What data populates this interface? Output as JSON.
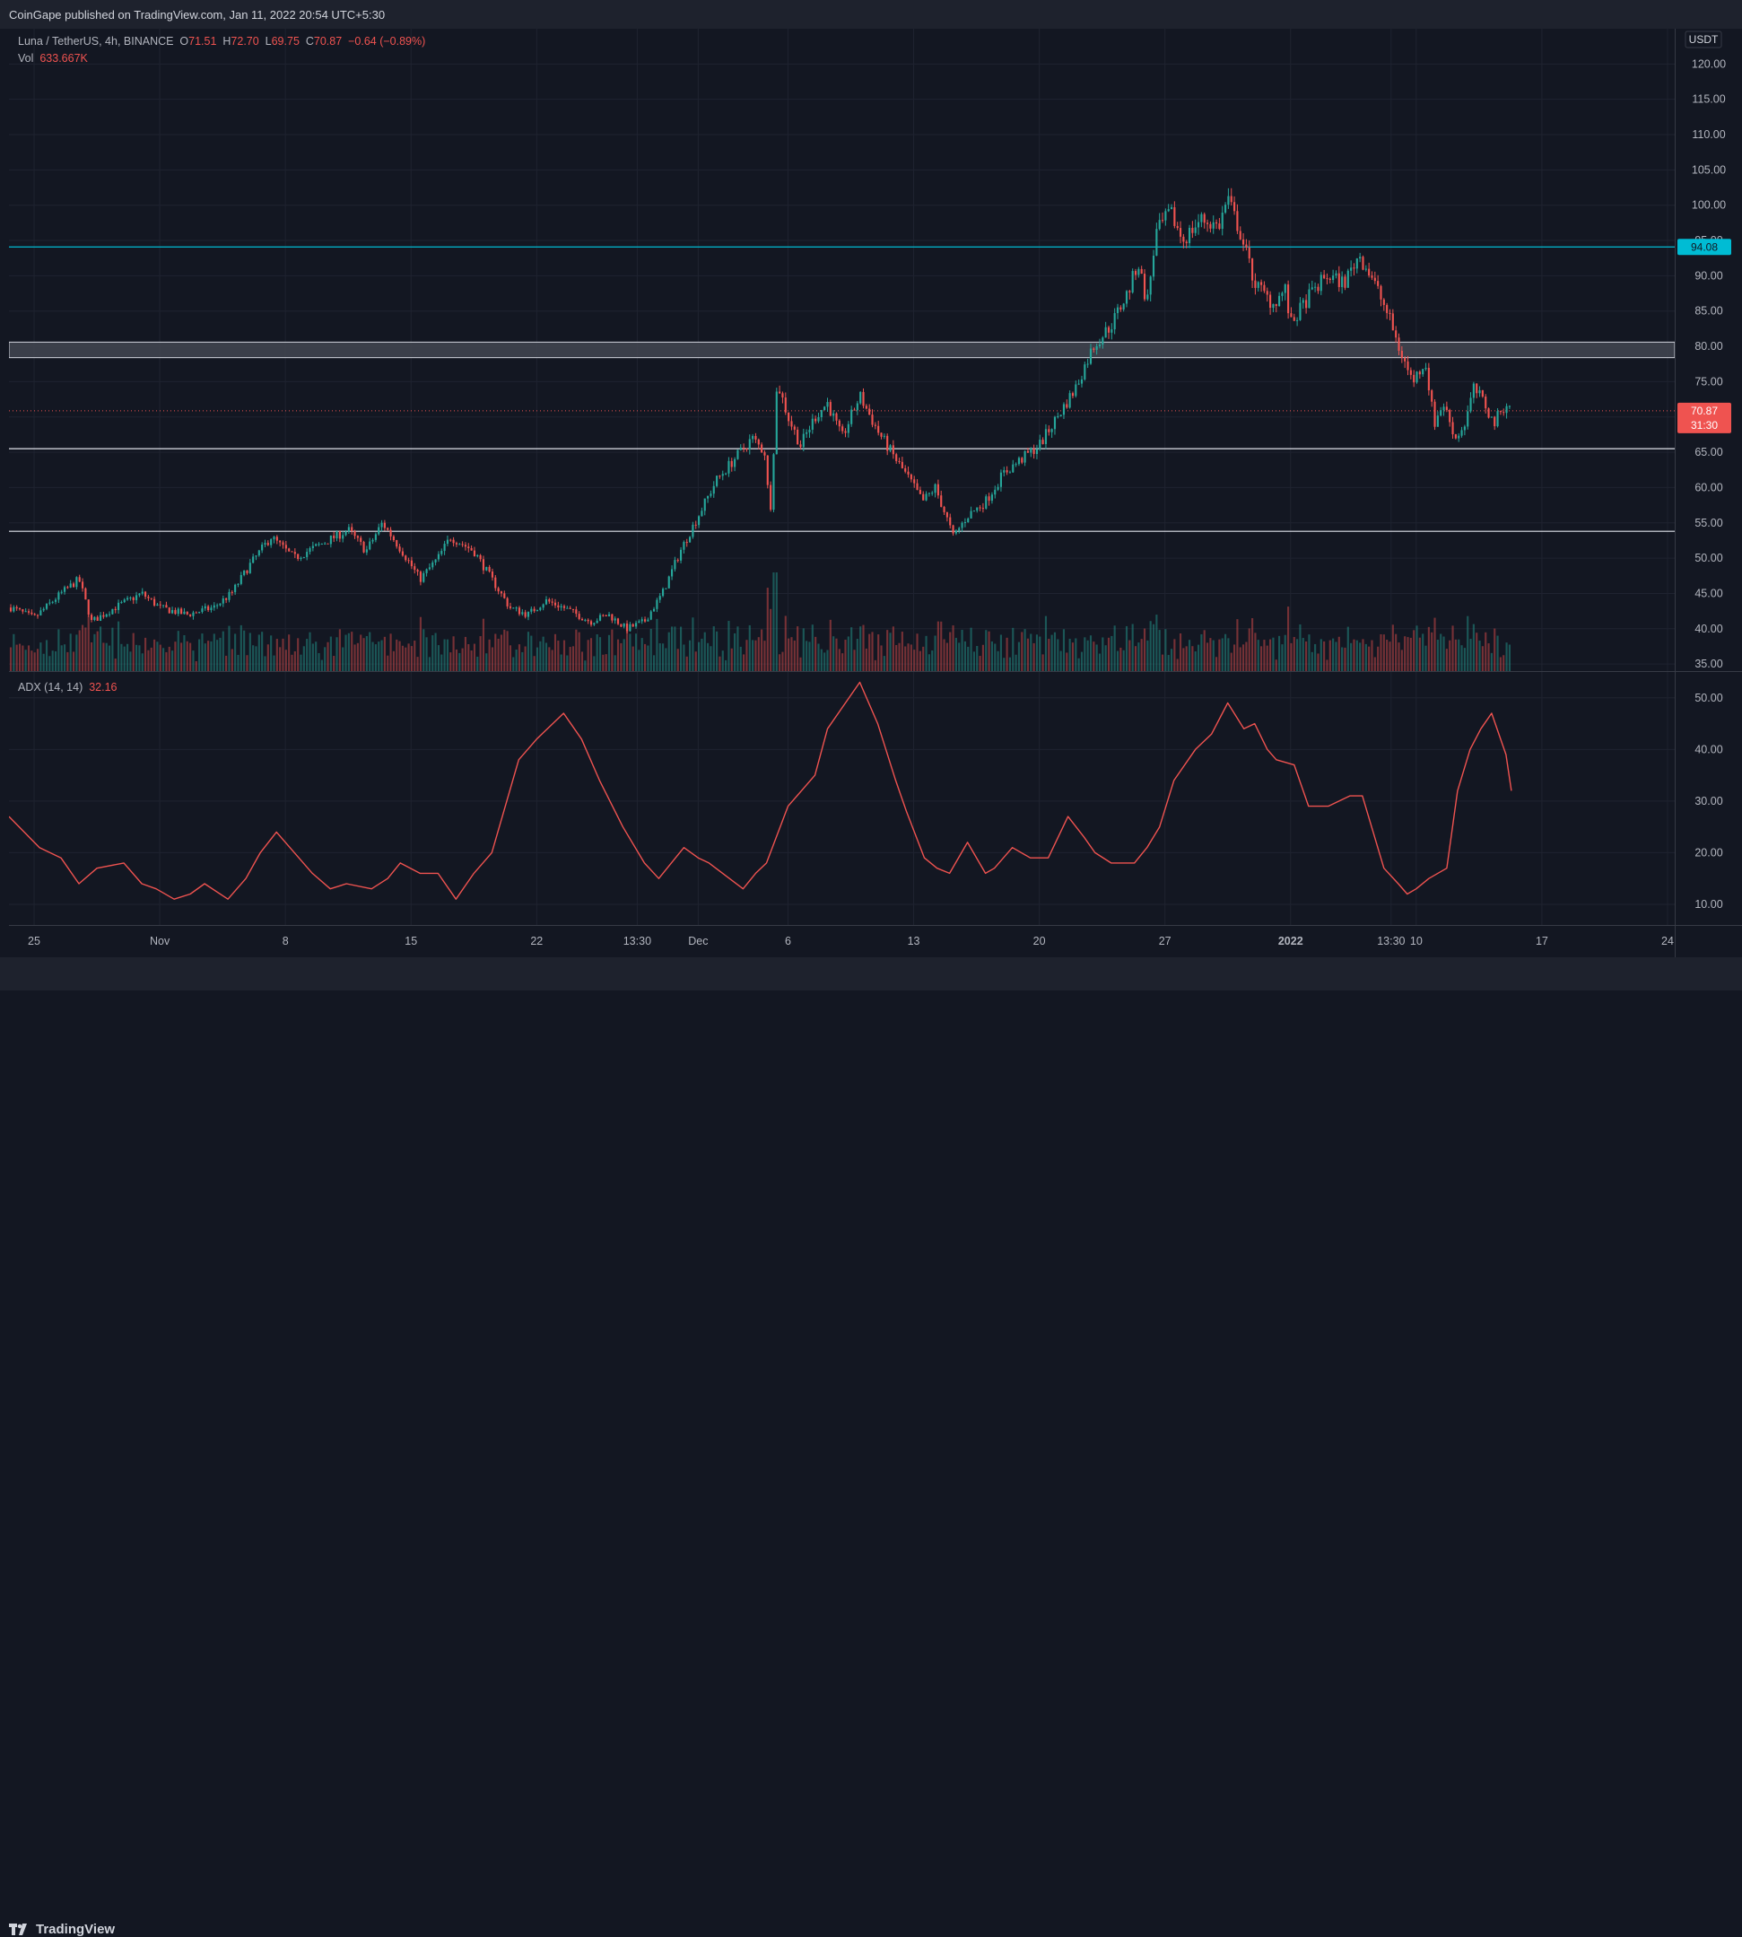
{
  "header": {
    "published": "CoinGape published on TradingView.com, Jan 11, 2022 20:54 UTC+5:30"
  },
  "legend": {
    "symbol": "Luna / TetherUS, 4h, BINANCE",
    "o_label": "O",
    "open": "71.51",
    "h_label": "H",
    "high": "72.70",
    "l_label": "L",
    "low": "69.75",
    "c_label": "C",
    "close": "70.87",
    "change": "−0.64 (−0.89%)",
    "vol_label": "Vol",
    "vol": "633.667K"
  },
  "adx_legend": {
    "label": "ADX (14, 14)",
    "value": "32.16"
  },
  "currency": "USDT",
  "footer": {
    "brand": "TradingView"
  },
  "colors": {
    "up": "#26a69a",
    "down": "#ef5350",
    "adx": "#ef5350",
    "resistance_cyan": "#00bcd4",
    "background": "#131722"
  },
  "chart_data": [
    {
      "type": "candlestick",
      "title": "Luna / TetherUS, 4h, BINANCE",
      "ylim": [
        34,
        125
      ],
      "y_ticks": [
        "120.00",
        "115.00",
        "110.00",
        "105.00",
        "100.00",
        "95.00",
        "90.00",
        "85.00",
        "80.00",
        "75.00",
        "70.00",
        "65.00",
        "60.00",
        "55.00",
        "50.00",
        "45.00",
        "40.00",
        "35.00"
      ],
      "x_ticks": [
        "25",
        "Nov",
        "8",
        "15",
        "22",
        "13:30",
        "Dec",
        "6",
        "13",
        "20",
        "27",
        "2022",
        "13:30",
        "10",
        "17",
        "24"
      ],
      "x_tick_days": [
        0,
        7,
        14,
        21,
        28,
        33.6,
        37,
        42,
        49,
        56,
        63,
        70,
        75.6,
        77,
        84,
        91
      ],
      "x_range_days": [
        -1.4,
        91.4
      ],
      "price_anchors": [
        [
          -1.3,
          43
        ],
        [
          0,
          41.5
        ],
        [
          1.5,
          45
        ],
        [
          2.5,
          47
        ],
        [
          3.2,
          41
        ],
        [
          4.5,
          43
        ],
        [
          6,
          45
        ],
        [
          7,
          43
        ],
        [
          8.5,
          42
        ],
        [
          10,
          43
        ],
        [
          11,
          45
        ],
        [
          12,
          49
        ],
        [
          13.2,
          53
        ],
        [
          14.5,
          50
        ],
        [
          16,
          52
        ],
        [
          17.5,
          54
        ],
        [
          18.5,
          51
        ],
        [
          19.4,
          55
        ],
        [
          20.5,
          51
        ],
        [
          21.5,
          47
        ],
        [
          22.5,
          50
        ],
        [
          23.2,
          53
        ],
        [
          24.5,
          51
        ],
        [
          25.5,
          47
        ],
        [
          26.5,
          43
        ],
        [
          27.5,
          42
        ],
        [
          28.5,
          44
        ],
        [
          29.5,
          43
        ],
        [
          31,
          41
        ],
        [
          32,
          42
        ],
        [
          33,
          40
        ],
        [
          34,
          41
        ],
        [
          35,
          45
        ],
        [
          36,
          51
        ],
        [
          37,
          56
        ],
        [
          38,
          61
        ],
        [
          39,
          64
        ],
        [
          40,
          67
        ],
        [
          40.7,
          65
        ],
        [
          41,
          56
        ],
        [
          41.4,
          75
        ],
        [
          42,
          70
        ],
        [
          42.7,
          66
        ],
        [
          43.5,
          70
        ],
        [
          44.2,
          72
        ],
        [
          45,
          67
        ],
        [
          46,
          73
        ],
        [
          47,
          68
        ],
        [
          48,
          64
        ],
        [
          48.8,
          61
        ],
        [
          49.5,
          58
        ],
        [
          50.2,
          60
        ],
        [
          50.8,
          56
        ],
        [
          51.2,
          53
        ],
        [
          52,
          56
        ],
        [
          53,
          58
        ],
        [
          54,
          62
        ],
        [
          55,
          64
        ],
        [
          56,
          66
        ],
        [
          57,
          70
        ],
        [
          58,
          74
        ],
        [
          59,
          80
        ],
        [
          60,
          83
        ],
        [
          61,
          88
        ],
        [
          61.5,
          92
        ],
        [
          62,
          86
        ],
        [
          62.5,
          96
        ],
        [
          63.3,
          99
        ],
        [
          64,
          95
        ],
        [
          65,
          98
        ],
        [
          66,
          97
        ],
        [
          66.5,
          101
        ],
        [
          67.2,
          96
        ],
        [
          68,
          89
        ],
        [
          69,
          86
        ],
        [
          69.7,
          88
        ],
        [
          70,
          83
        ],
        [
          71,
          87
        ],
        [
          72,
          90
        ],
        [
          73,
          89
        ],
        [
          73.8,
          93
        ],
        [
          74.5,
          90
        ],
        [
          75.5,
          84
        ],
        [
          76,
          80
        ],
        [
          76.8,
          75
        ],
        [
          77.5,
          78
        ],
        [
          78,
          69
        ],
        [
          78.5,
          72
        ],
        [
          79.2,
          67
        ],
        [
          79.7,
          69
        ],
        [
          80.2,
          74
        ],
        [
          80.8,
          72
        ],
        [
          81.3,
          69
        ],
        [
          82,
          72
        ],
        [
          82.3,
          71
        ]
      ],
      "current_price": "70.87",
      "countdown": "31:30",
      "levels": [
        {
          "kind": "resistance-line",
          "price": 94.08,
          "label": "94.08"
        },
        {
          "kind": "resistance-zone",
          "low": 78.4,
          "high": 80.6
        },
        {
          "kind": "support-line",
          "price": 65.5
        },
        {
          "kind": "support-line",
          "price": 53.8
        }
      ]
    },
    {
      "type": "line",
      "title": "ADX (14, 14)",
      "ylim": [
        6,
        55
      ],
      "y_ticks": [
        "50.00",
        "40.00",
        "30.00",
        "20.00",
        "10.00"
      ],
      "series": [
        {
          "name": "ADX (14, 14)",
          "x": [
            -1.4,
            0.3,
            1.5,
            2.5,
            3.5,
            5,
            6,
            6.8,
            7.8,
            8.7,
            9.5,
            10.8,
            11.8,
            12.6,
            13.5,
            14.5,
            15.5,
            16.5,
            17.4,
            18.8,
            19.7,
            20.4,
            21.5,
            22.5,
            23.5,
            24.5,
            25.5,
            27,
            28,
            29.5,
            30.5,
            31.5,
            32.8,
            34,
            34.8,
            35.5,
            36.2,
            37,
            37.6,
            39.5,
            40.2,
            40.8,
            42,
            43.5,
            44.2,
            45.2,
            46,
            47,
            48,
            48.6,
            49.6,
            50.3,
            51,
            52,
            53,
            53.5,
            54.5,
            55.5,
            56.5,
            57.6,
            58.5,
            59.1,
            60,
            60.8,
            61.3,
            62,
            62.7,
            63.5,
            64.7,
            65.6,
            66.5,
            67.4,
            68,
            68.7,
            69.2,
            70.2,
            71,
            72.1,
            73.3,
            74,
            75.2,
            76,
            76.5,
            77,
            77.7,
            78.7,
            79.3,
            80,
            80.6,
            81.2,
            82,
            82.3
          ],
          "y": [
            27,
            21,
            19,
            14,
            17,
            18,
            14,
            13,
            11,
            12,
            14,
            11,
            15,
            20,
            24,
            20,
            16,
            13,
            14,
            13,
            15,
            18,
            16,
            16,
            11,
            16,
            20,
            38,
            42,
            47,
            42,
            34,
            25,
            18,
            15,
            18,
            21,
            19,
            18,
            13,
            16,
            18,
            29,
            35,
            44,
            49,
            53,
            45,
            34,
            28,
            19,
            17,
            16,
            22,
            16,
            17,
            21,
            19,
            19,
            27,
            23,
            20,
            18,
            18,
            18,
            21,
            25,
            34,
            40,
            43,
            49,
            44,
            45,
            40,
            38,
            37,
            29,
            29,
            31,
            31,
            17,
            14,
            12,
            13,
            15,
            17,
            32,
            40,
            44,
            47,
            39,
            32
          ]
        }
      ]
    }
  ]
}
